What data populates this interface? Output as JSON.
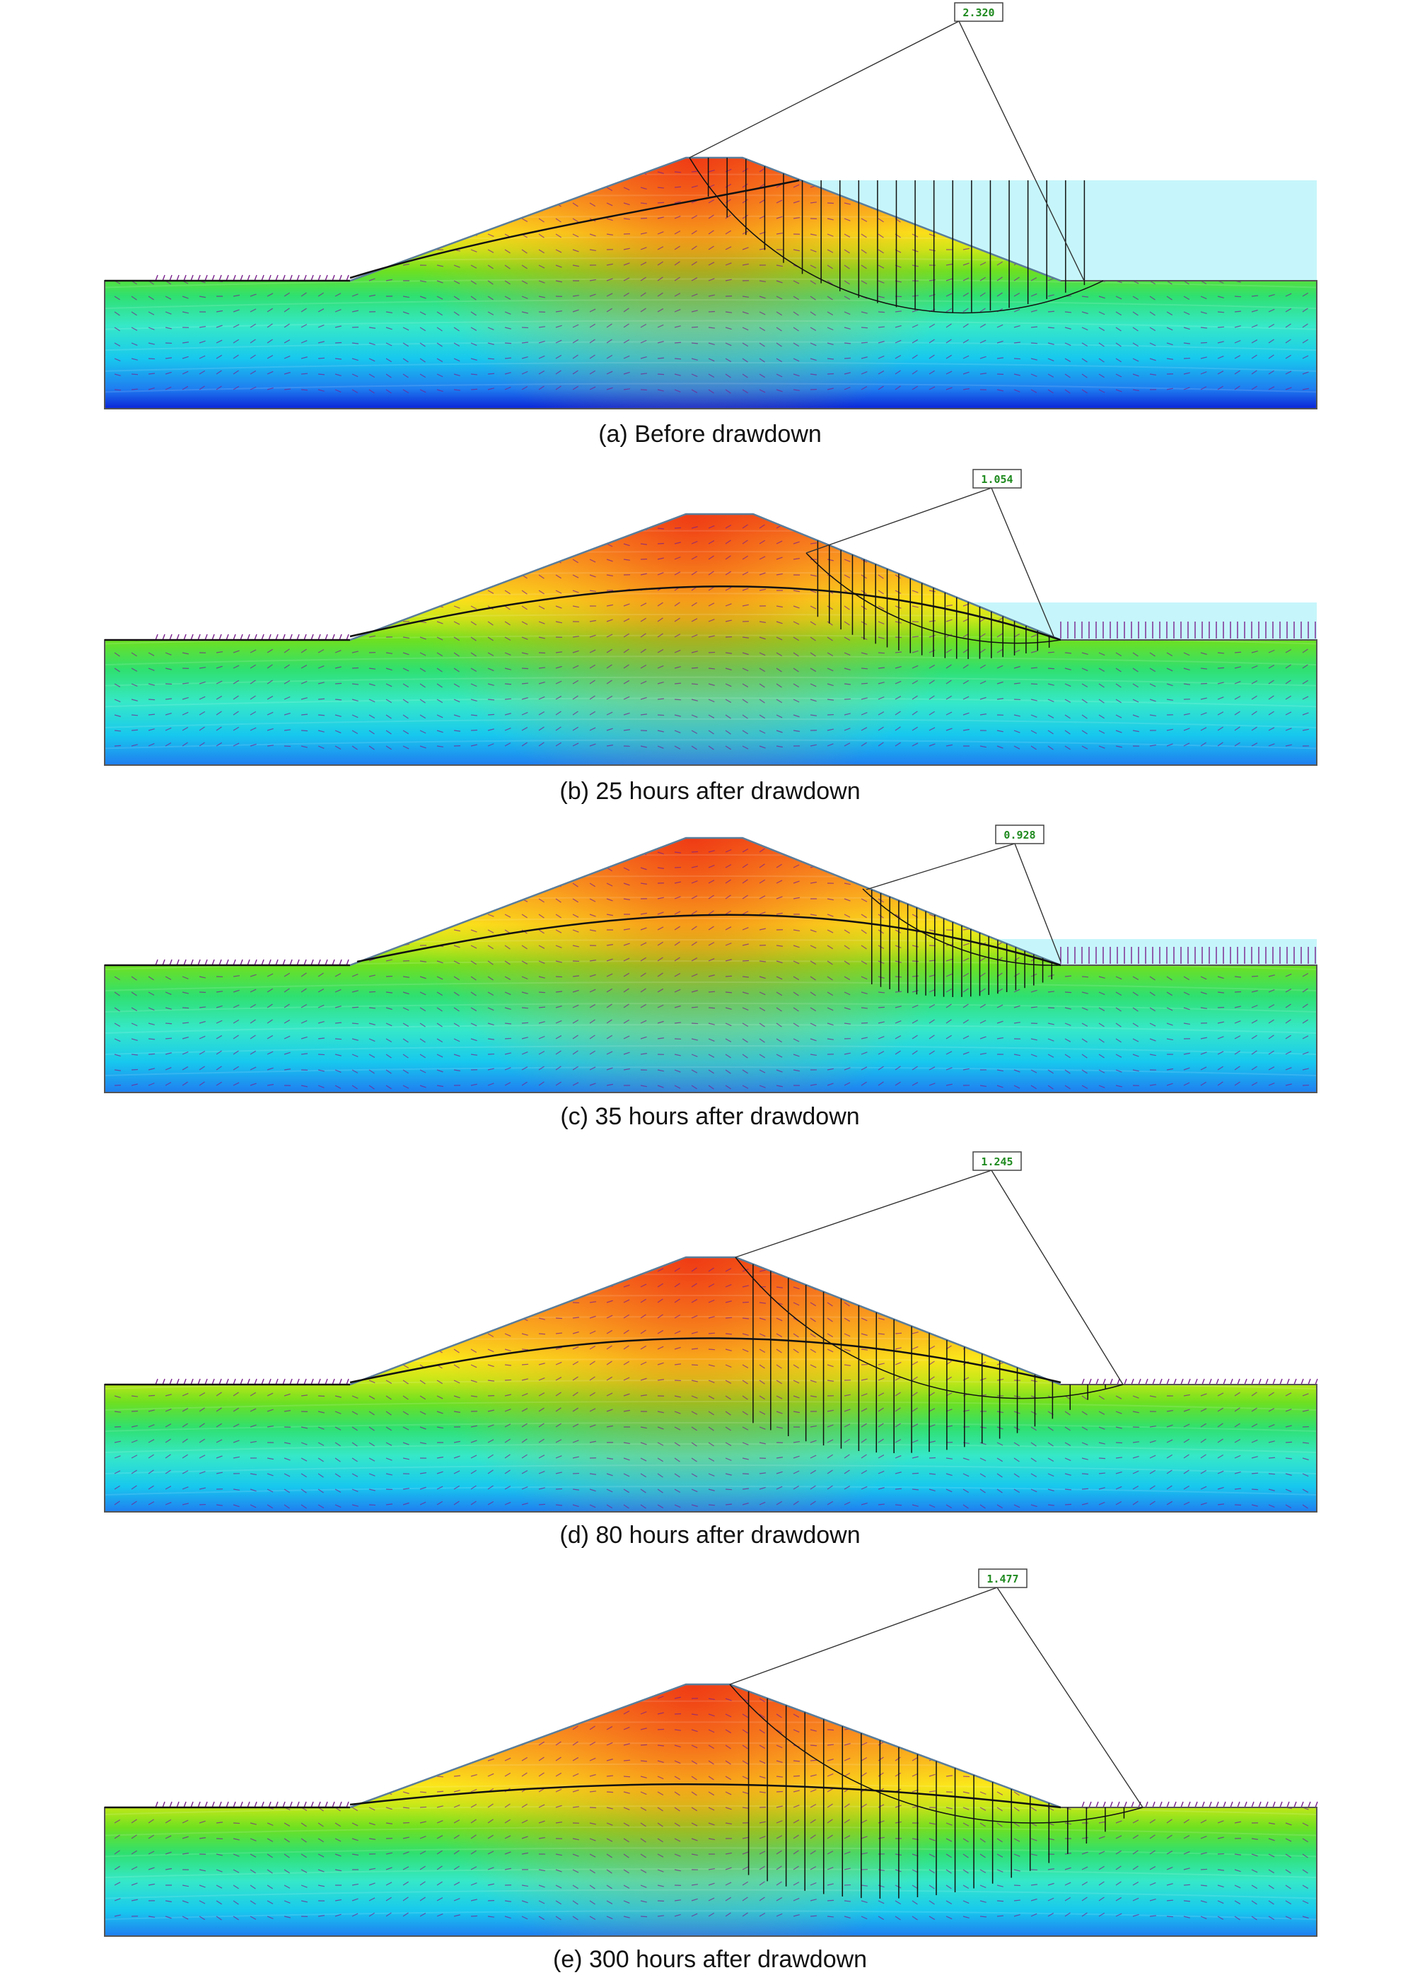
{
  "colors": {
    "reservoir_water": "#c6f6fb",
    "slip_surface": "#111111",
    "phreatic_line": "#111111",
    "flow_vectors": "#7a1f8c",
    "fs_text": "#1f8a1f",
    "contour_scale": [
      "#0a24d8",
      "#1f7ef0",
      "#18c8ee",
      "#36e8c8",
      "#2fe070",
      "#6ee020",
      "#c8e818",
      "#fbe81a",
      "#fbb41e",
      "#f77d1e",
      "#ef3a14"
    ]
  },
  "panels": [
    {
      "id": "a",
      "caption": "(a)  Before  drawdown",
      "factor_of_safety": "2.320",
      "reservoir": "full"
    },
    {
      "id": "b",
      "caption": "(b)  25  hours  after  drawdown",
      "factor_of_safety": "1.054",
      "reservoir": "drawn_down"
    },
    {
      "id": "c",
      "caption": "(c)  35  hours  after  drawdown",
      "factor_of_safety": "0.928",
      "reservoir": "drawn_down"
    },
    {
      "id": "d",
      "caption": "(d)  80  hours  after  drawdown",
      "factor_of_safety": "1.245",
      "reservoir": "empty"
    },
    {
      "id": "e",
      "caption": "(e)  300  hours  after  drawdown",
      "factor_of_safety": "1.477",
      "reservoir": "empty"
    }
  ]
}
